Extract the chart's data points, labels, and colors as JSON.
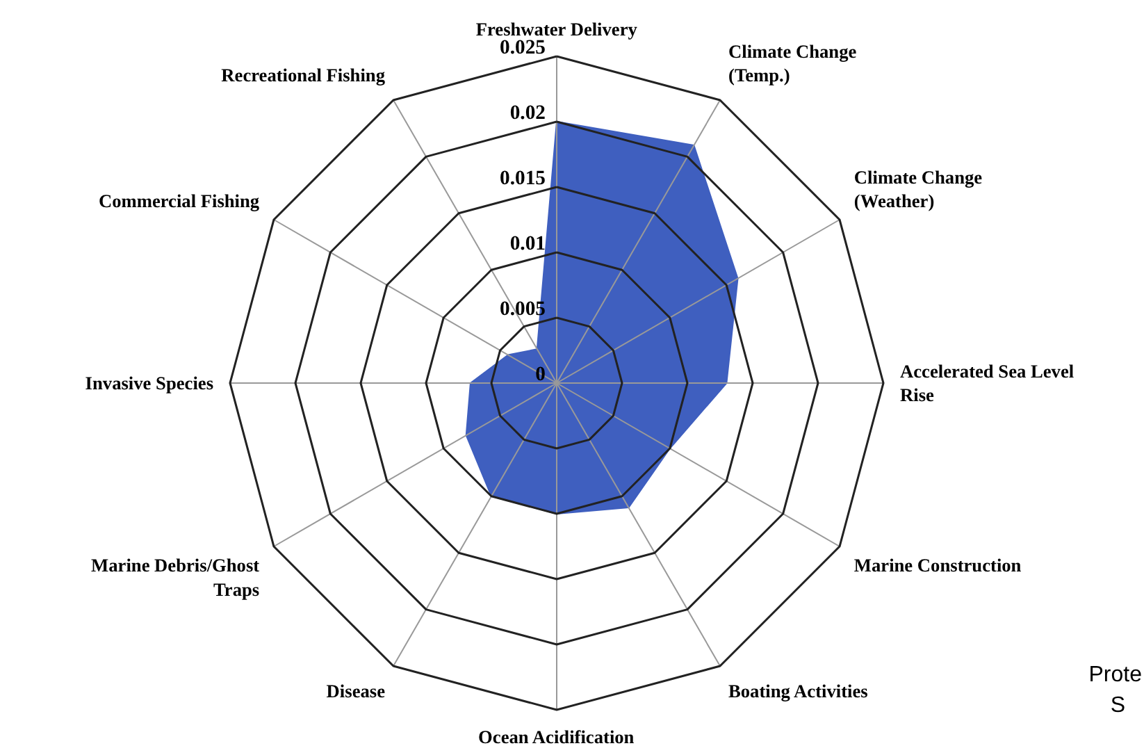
{
  "chart_data": {
    "type": "radar",
    "categories": [
      "Freshwater Delivery",
      "Climate Change\n(Temp.)",
      "Climate Change\n(Weather)",
      "Accelerated Sea Level\nRise",
      "Marine Construction",
      "Boating Activities",
      "Ocean Acidification",
      "Disease",
      "Marine Debris/Ghost\nTraps",
      "Invasive Species",
      "Commercial Fishing",
      "Recreational Fishing"
    ],
    "series": [
      {
        "color": "#3f5fbf",
        "values": [
          0.02,
          0.021,
          0.016,
          0.013,
          0.01,
          0.011,
          0.01,
          0.01,
          0.008,
          0.0066,
          0.0043,
          0.003
        ]
      }
    ],
    "ylim": [
      0,
      0.025
    ],
    "yticks": [
      0,
      0.005,
      0.01,
      0.015,
      0.02,
      0.025
    ],
    "grid": true,
    "annotations": [
      {
        "text": "Prote"
      },
      {
        "text": "S"
      }
    ]
  }
}
